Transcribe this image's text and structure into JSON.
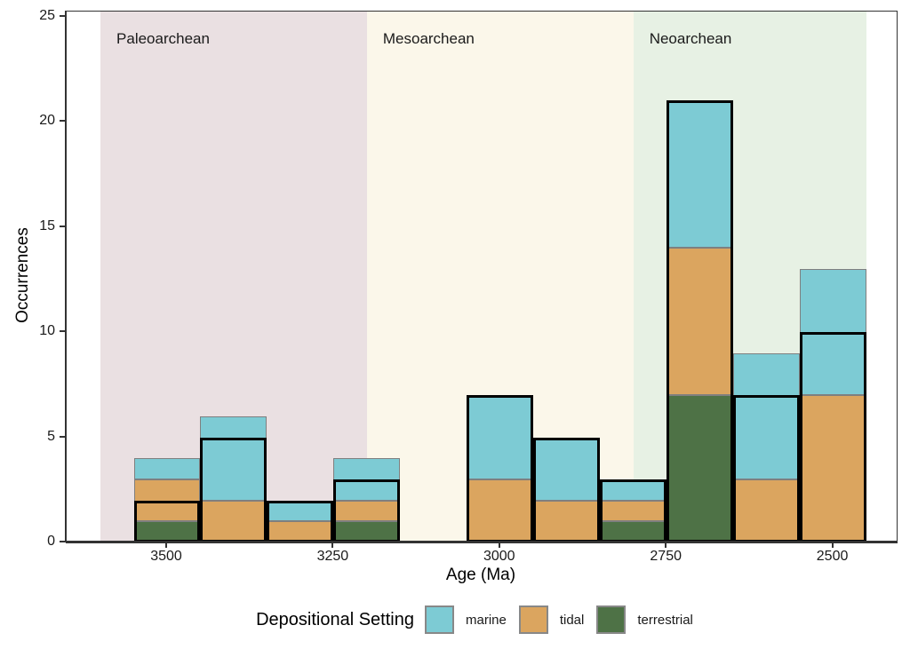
{
  "figure": {
    "xlabel": "Age (Ma)",
    "ylabel": "Occurrences"
  },
  "legend": {
    "title": "Depositional Setting",
    "items": [
      {
        "label": "marine",
        "color": "#7DCBD4"
      },
      {
        "label": "tidal",
        "color": "#DBA55F"
      },
      {
        "label": "terrestrial",
        "color": "#4E7246"
      }
    ]
  },
  "chart_data": {
    "type": "bar",
    "subtype": "stacked-histogram",
    "title": "",
    "xlabel": "Age (Ma)",
    "ylabel": "Occurrences",
    "x_axis": {
      "reversed": true,
      "ticks": [
        3500,
        3250,
        3000,
        2750,
        2500
      ],
      "unit": "Ma",
      "range_left_ma": 3650,
      "range_right_ma": 2405
    },
    "y_axis": {
      "ticks": [
        0,
        5,
        10,
        15,
        20,
        25
      ],
      "lim": [
        0,
        25
      ]
    },
    "grid": false,
    "legend_position": "bottom",
    "bin_width_ma": 100,
    "stack_order": [
      "terrestrial",
      "tidal",
      "marine"
    ],
    "colors": {
      "marine": "#7DCBD4",
      "tidal": "#DBA55F",
      "terrestrial": "#4E7246",
      "segment_outline": "#7F7F7F",
      "highlight_outline": "#000000",
      "paleoarchean_band": "#EAE0E2",
      "mesoarchean_band": "#FBF7EA",
      "neoarchean_band": "#E7F1E4"
    },
    "eras": [
      {
        "name": "Paleoarchean",
        "from_ma": 3600,
        "to_ma": 3200,
        "fill": "#EAE0E2"
      },
      {
        "name": "Mesoarchean",
        "from_ma": 3200,
        "to_ma": 2800,
        "fill": "#FBF7EA"
      },
      {
        "name": "Neoarchean",
        "from_ma": 2800,
        "to_ma": 2450,
        "fill": "#E7F1E4"
      }
    ],
    "bins": [
      {
        "age_ma": 3500,
        "terrestrial": 1,
        "tidal": 2,
        "marine": 1,
        "total": 4,
        "outlined_total": 2
      },
      {
        "age_ma": 3400,
        "terrestrial": 0,
        "tidal": 2,
        "marine": 4,
        "total": 6,
        "outlined_total": 5
      },
      {
        "age_ma": 3300,
        "terrestrial": 0,
        "tidal": 1,
        "marine": 1,
        "total": 2,
        "outlined_total": 2
      },
      {
        "age_ma": 3200,
        "terrestrial": 1,
        "tidal": 1,
        "marine": 2,
        "total": 4,
        "outlined_total": 3
      },
      {
        "age_ma": 3100,
        "terrestrial": 0,
        "tidal": 0,
        "marine": 0,
        "total": 0,
        "outlined_total": 0
      },
      {
        "age_ma": 3000,
        "terrestrial": 0,
        "tidal": 3,
        "marine": 4,
        "total": 7,
        "outlined_total": 7
      },
      {
        "age_ma": 2900,
        "terrestrial": 0,
        "tidal": 2,
        "marine": 3,
        "total": 5,
        "outlined_total": 5
      },
      {
        "age_ma": 2800,
        "terrestrial": 1,
        "tidal": 1,
        "marine": 1,
        "total": 3,
        "outlined_total": 3
      },
      {
        "age_ma": 2700,
        "terrestrial": 7,
        "tidal": 7,
        "marine": 7,
        "total": 21,
        "outlined_total": 21
      },
      {
        "age_ma": 2600,
        "terrestrial": 0,
        "tidal": 3,
        "marine": 6,
        "total": 9,
        "outlined_total": 7
      },
      {
        "age_ma": 2500,
        "terrestrial": 0,
        "tidal": 7,
        "marine": 6,
        "total": 13,
        "outlined_total": 10
      }
    ]
  }
}
